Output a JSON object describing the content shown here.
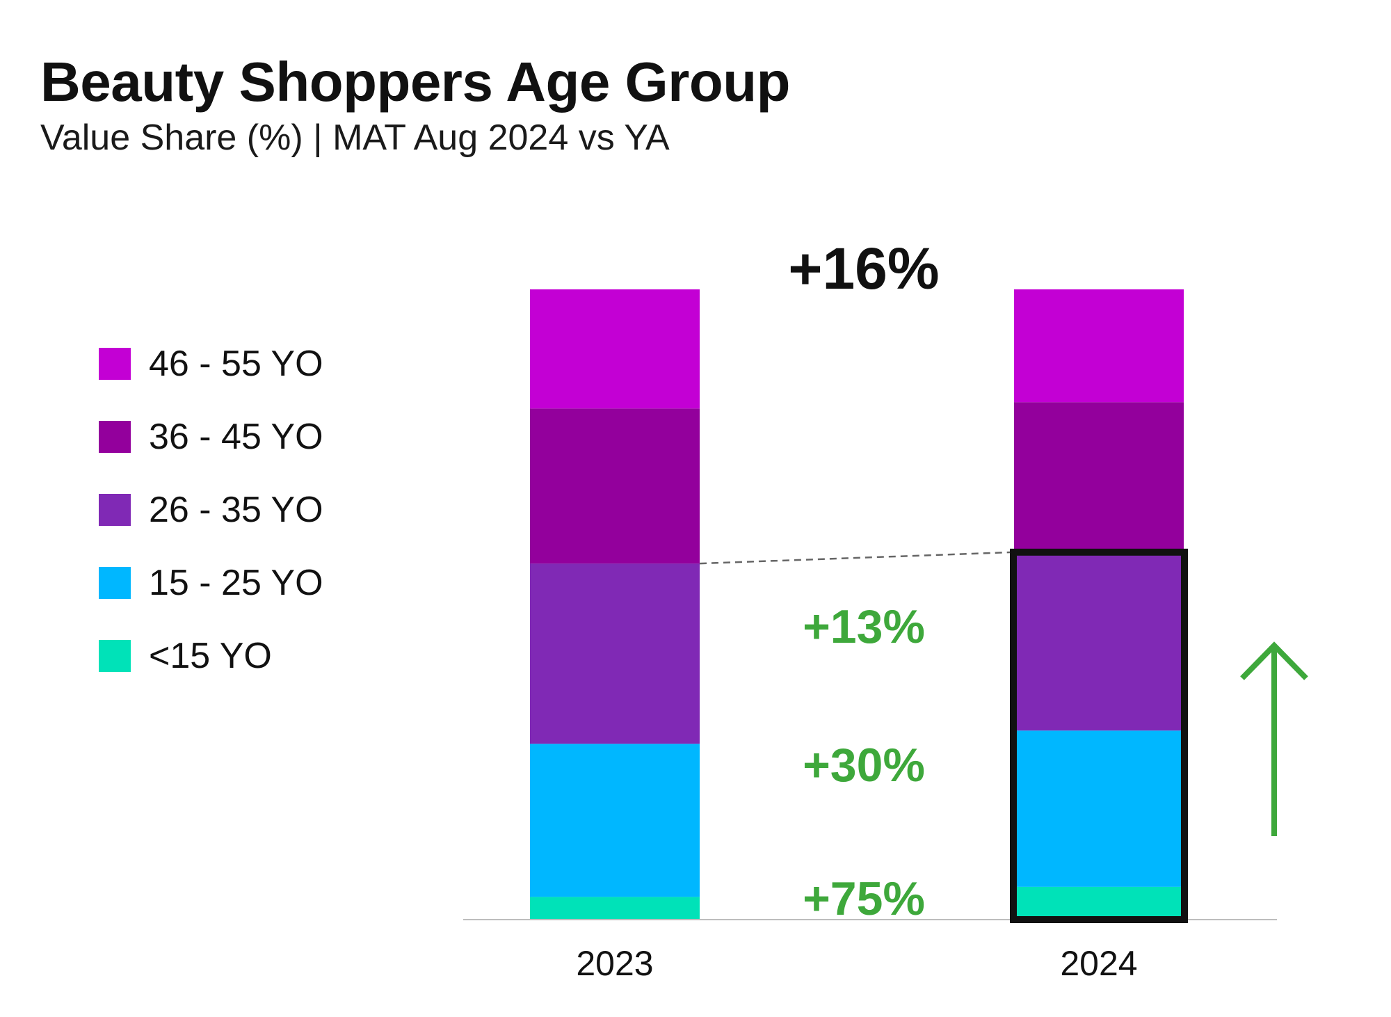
{
  "header": {
    "title": "Beauty Shoppers Age Group",
    "subtitle": "Value Share (%) | MAT Aug 2024 vs YA"
  },
  "colors": {
    "age_46_55": "#c300d4",
    "age_36_45": "#93009c",
    "age_26_35": "#8029b5",
    "age_15_25": "#00b7ff",
    "age_under_15": "#00e2b8",
    "growth": "#3ea83b",
    "highlight_border": "#111111"
  },
  "chart_data": {
    "type": "bar",
    "stacked": true,
    "categories": [
      "2023",
      "2024"
    ],
    "series": [
      {
        "name": "<15 YO",
        "color_key": "age_under_15",
        "values": [
          3.6,
          5.2
        ]
      },
      {
        "name": "15 - 25 YO",
        "color_key": "age_15_25",
        "values": [
          24.3,
          24.8
        ]
      },
      {
        "name": "26 - 35 YO",
        "color_key": "age_26_35",
        "values": [
          28.6,
          28.3
        ]
      },
      {
        "name": "36 - 45 YO",
        "color_key": "age_36_45",
        "values": [
          24.6,
          23.8
        ]
      },
      {
        "name": "46 - 55 YO",
        "color_key": "age_46_55",
        "values": [
          18.9,
          17.9
        ]
      }
    ],
    "ylim": [
      0,
      100
    ],
    "legend_position": "left",
    "grid": false,
    "annotations": {
      "total_growth": "+16%",
      "segment_growth": [
        {
          "series": "26 - 35 YO",
          "label": "+13%"
        },
        {
          "series": "15 - 25 YO",
          "label": "+30%"
        },
        {
          "series": "<15 YO",
          "label": "+75%"
        }
      ],
      "highlighted_series": [
        "<15 YO",
        "15 - 25 YO",
        "26 - 35 YO"
      ],
      "trend_arrow": "up"
    }
  }
}
